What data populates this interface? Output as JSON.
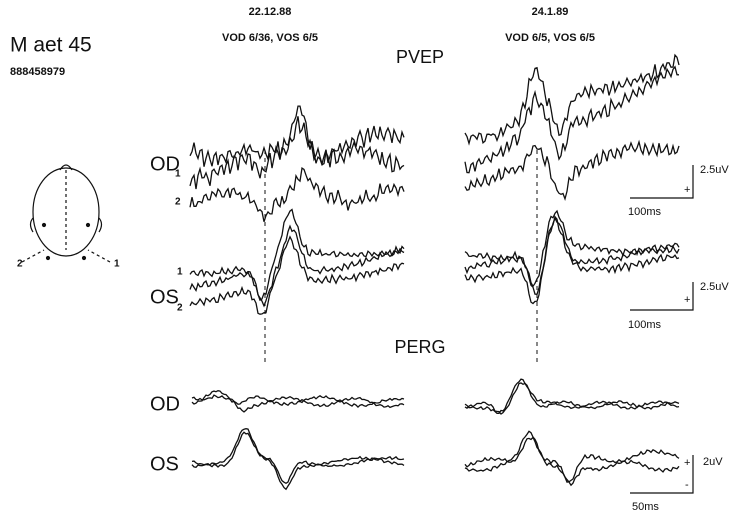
{
  "patient": {
    "label": "M aet 45",
    "id": "888458979"
  },
  "sessions": [
    {
      "date": "22.12.88",
      "acuity": "VOD 6/36, VOS 6/5"
    },
    {
      "date": "24.1.89",
      "acuity": "VOD 6/5, VOS 6/5"
    }
  ],
  "sections": [
    {
      "title": "PVEP",
      "rows": [
        {
          "eye": "OD",
          "traces": [
            "1",
            "2"
          ],
          "scale": {
            "amplitude": "2.5uV",
            "time": "100ms",
            "polarity": [
              "+"
            ]
          }
        },
        {
          "eye": "OS",
          "traces": [
            "1",
            "2"
          ],
          "scale": {
            "amplitude": "2.5uV",
            "time": "100ms",
            "polarity": [
              "+"
            ]
          }
        }
      ]
    },
    {
      "title": "PERG",
      "rows": [
        {
          "eye": "OD"
        },
        {
          "eye": "OS",
          "scale": {
            "amplitude": "2uV",
            "time": "50ms",
            "polarity": [
              "+",
              "-"
            ]
          }
        }
      ]
    }
  ],
  "head": {
    "electrodes": [
      "2",
      "1"
    ]
  }
}
